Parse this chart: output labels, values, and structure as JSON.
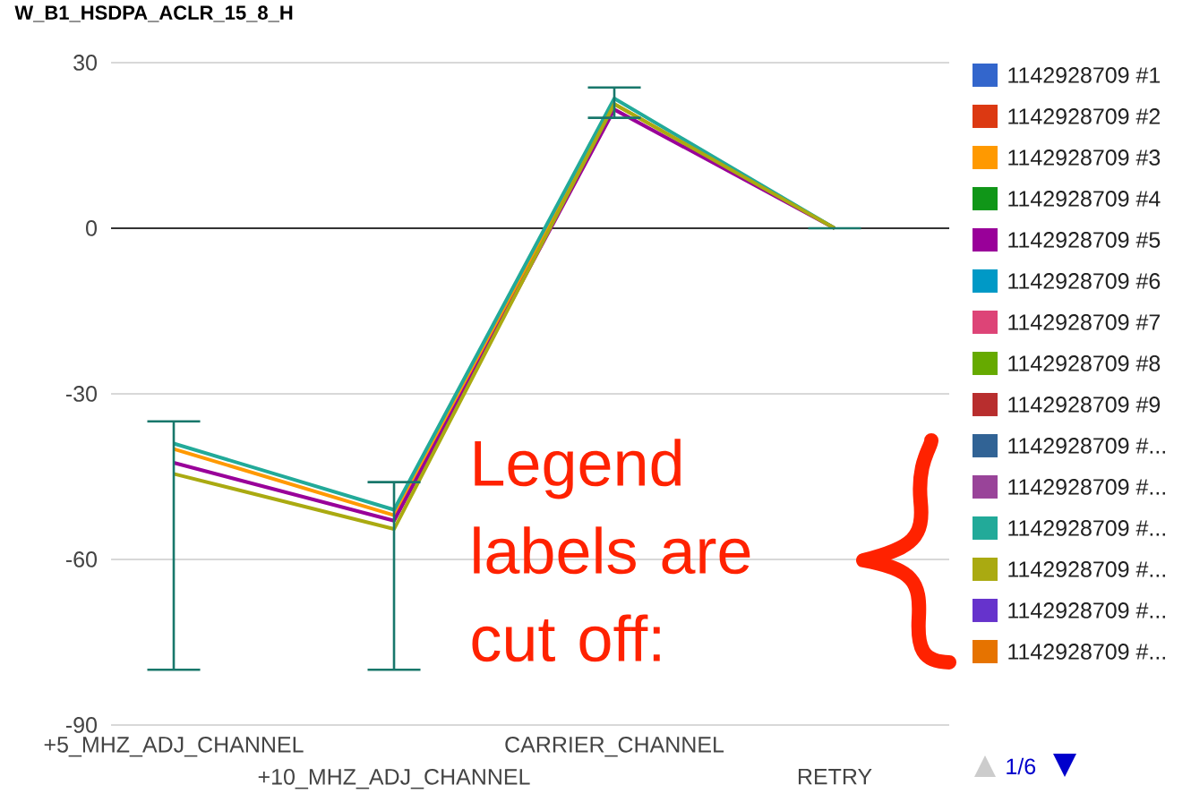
{
  "chart_data": {
    "type": "line",
    "title": "W_B1_HSDPA_ACLR_15_8_H",
    "categories": [
      "+5_MHZ_ADJ_CHANNEL",
      "+10_MHZ_ADJ_CHANNEL",
      "CARRIER_CHANNEL",
      "RETRY"
    ],
    "ylim": [
      -90,
      30
    ],
    "yticks": [
      -90,
      -60,
      -30,
      0,
      30
    ],
    "grid": "y",
    "legend": "right",
    "ref_lines": [
      {
        "axis": "y",
        "value": 0,
        "color": "#333333"
      }
    ],
    "annotations": [
      "Legend labels are cut off:",
      "1/6"
    ],
    "series": [
      {
        "name": "1142928709 #1",
        "color": "#3366cc",
        "values": [
          null,
          null,
          null,
          null
        ]
      },
      {
        "name": "1142928709 #2",
        "color": "#dc3912",
        "values": [
          null,
          null,
          null,
          null
        ]
      },
      {
        "name": "1142928709 #3",
        "color": "#ff9900",
        "values": [
          -40,
          -52,
          22.5,
          0
        ]
      },
      {
        "name": "1142928709 #4",
        "color": "#109618",
        "values": [
          null,
          null,
          null,
          null
        ]
      },
      {
        "name": "1142928709 #5",
        "color": "#990099",
        "values": [
          -42.5,
          -53,
          21.5,
          0
        ]
      },
      {
        "name": "1142928709 #6",
        "color": "#0099c6",
        "values": [
          null,
          null,
          null,
          null
        ]
      },
      {
        "name": "1142928709 #7",
        "color": "#dd4477",
        "values": [
          null,
          null,
          null,
          null
        ]
      },
      {
        "name": "1142928709 #8",
        "color": "#66aa00",
        "values": [
          null,
          null,
          null,
          null
        ]
      },
      {
        "name": "1142928709 #9",
        "color": "#b82e2e",
        "values": [
          null,
          null,
          null,
          null
        ]
      },
      {
        "name": "1142928709 #...",
        "color": "#316395",
        "values": [
          null,
          null,
          null,
          null
        ]
      },
      {
        "name": "1142928709 #...",
        "color": "#994499",
        "values": [
          null,
          null,
          null,
          null
        ]
      },
      {
        "name": "1142928709 #...",
        "color": "#22aa99",
        "values": [
          -39,
          -51,
          23.5,
          0
        ],
        "errors": [
          [
            -80,
            -35
          ],
          [
            -80,
            -46
          ],
          [
            20,
            25.5
          ],
          [
            0,
            0
          ]
        ]
      },
      {
        "name": "1142928709 #...",
        "color": "#aaaa11",
        "values": [
          -44.5,
          -54.5,
          22.5,
          0
        ]
      },
      {
        "name": "1142928709 #...",
        "color": "#6633cc",
        "values": [
          null,
          null,
          null,
          null
        ]
      },
      {
        "name": "1142928709 #...",
        "color": "#e67300",
        "values": [
          null,
          null,
          null,
          null
        ]
      }
    ]
  }
}
